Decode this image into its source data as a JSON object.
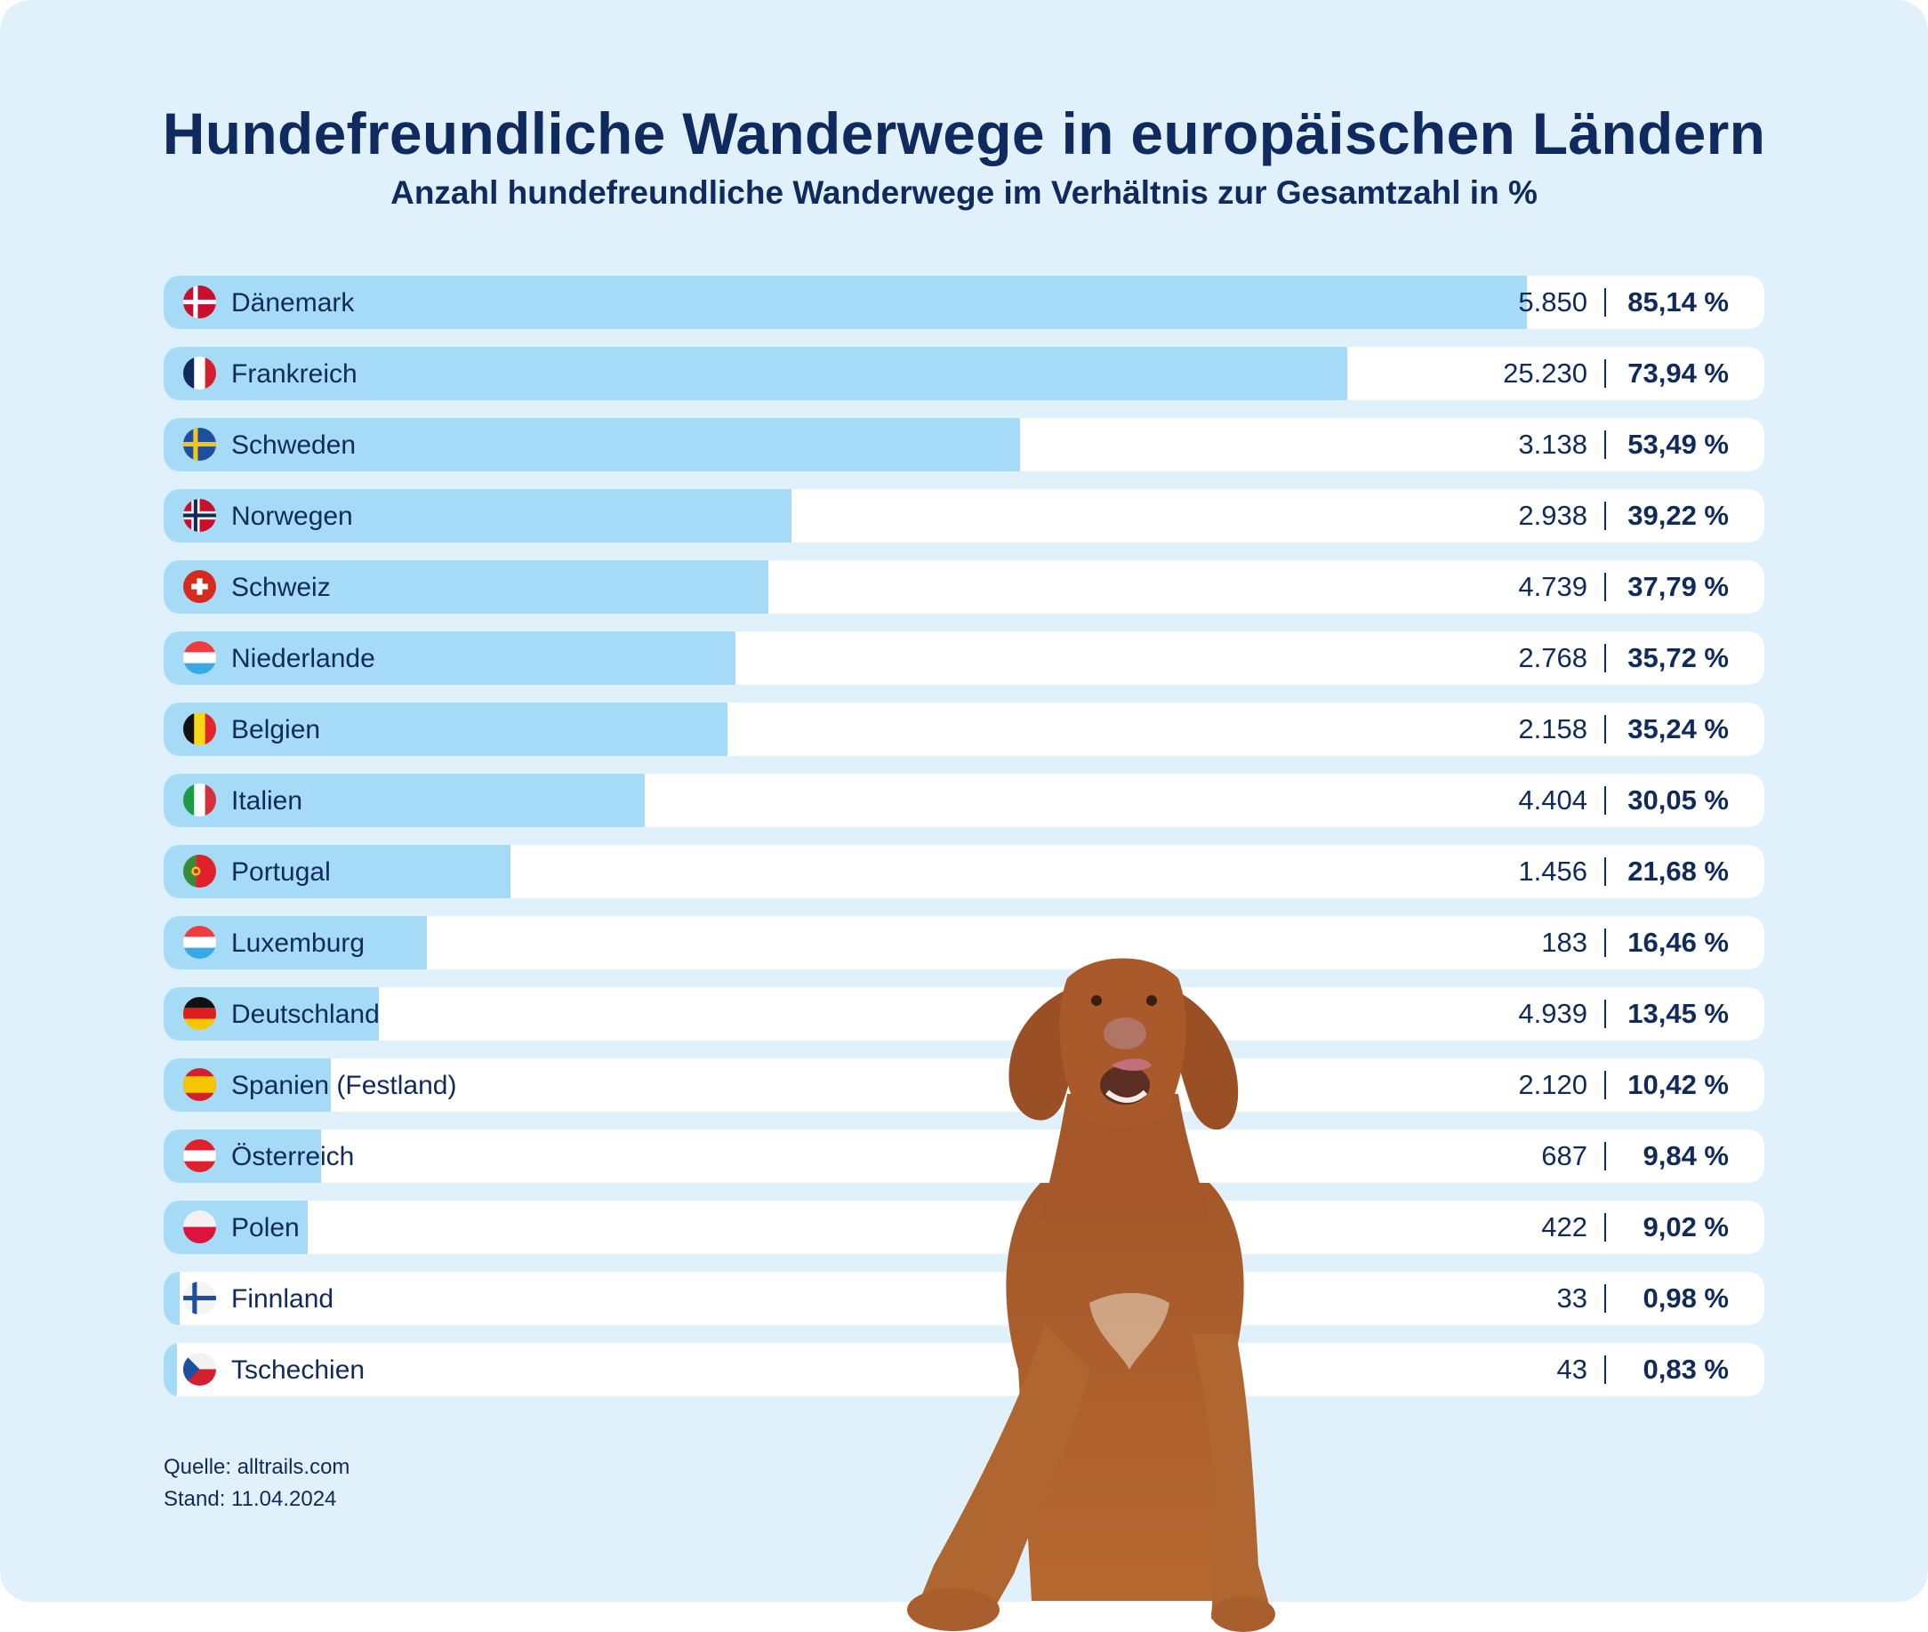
{
  "header": {
    "title": "Hundefreundliche Wanderwege in europäischen Ländern",
    "subtitle": "Anzahl hundefreundliche Wanderwege im Verhältnis zur Gesamtzahl in %"
  },
  "colors": {
    "background": "#e1f1fc",
    "bar_fill": "#a5dbf6",
    "bar_track": "#ffffff",
    "text": "#102a5c"
  },
  "chart_data": {
    "type": "bar",
    "orientation": "horizontal",
    "title": "Hundefreundliche Wanderwege in europäischen Ländern",
    "subtitle": "Anzahl hundefreundliche Wanderwege im Verhältnis zur Gesamtzahl in %",
    "xlim": [
      0,
      100
    ],
    "unit": "%",
    "categories": [
      "Dänemark",
      "Frankreich",
      "Schweden",
      "Norwegen",
      "Schweiz",
      "Niederlande",
      "Belgien",
      "Italien",
      "Portugal",
      "Luxemburg",
      "Deutschland",
      "Spanien (Festland)",
      "Österreich",
      "Polen",
      "Finnland",
      "Tschechien"
    ],
    "rows": [
      {
        "country": "Dänemark",
        "flag": "denmark-flag-icon",
        "count": "5.850",
        "pct_label": "85,14 %",
        "pct": 85.14
      },
      {
        "country": "Frankreich",
        "flag": "france-flag-icon",
        "count": "25.230",
        "pct_label": "73,94 %",
        "pct": 73.94
      },
      {
        "country": "Schweden",
        "flag": "sweden-flag-icon",
        "count": "3.138",
        "pct_label": "53,49 %",
        "pct": 53.49
      },
      {
        "country": "Norwegen",
        "flag": "norway-flag-icon",
        "count": "2.938",
        "pct_label": "39,22 %",
        "pct": 39.22
      },
      {
        "country": "Schweiz",
        "flag": "switzerland-flag-icon",
        "count": "4.739",
        "pct_label": "37,79 %",
        "pct": 37.79
      },
      {
        "country": "Niederlande",
        "flag": "netherlands-flag-icon",
        "count": "2.768",
        "pct_label": "35,72 %",
        "pct": 35.72
      },
      {
        "country": "Belgien",
        "flag": "belgium-flag-icon",
        "count": "2.158",
        "pct_label": "35,24 %",
        "pct": 35.24
      },
      {
        "country": "Italien",
        "flag": "italy-flag-icon",
        "count": "4.404",
        "pct_label": "30,05 %",
        "pct": 30.05
      },
      {
        "country": "Portugal",
        "flag": "portugal-flag-icon",
        "count": "1.456",
        "pct_label": "21,68 %",
        "pct": 21.68
      },
      {
        "country": "Luxemburg",
        "flag": "luxembourg-flag-icon",
        "count": "183",
        "pct_label": "16,46 %",
        "pct": 16.46
      },
      {
        "country": "Deutschland",
        "flag": "germany-flag-icon",
        "count": "4.939",
        "pct_label": "13,45 %",
        "pct": 13.45
      },
      {
        "country": "Spanien (Festland)",
        "flag": "spain-flag-icon",
        "count": "2.120",
        "pct_label": "10,42 %",
        "pct": 10.42
      },
      {
        "country": "Österreich",
        "flag": "austria-flag-icon",
        "count": "687",
        "pct_label": "9,84 %",
        "pct": 9.84
      },
      {
        "country": "Polen",
        "flag": "poland-flag-icon",
        "count": "422",
        "pct_label": "9,02 %",
        "pct": 9.02
      },
      {
        "country": "Finnland",
        "flag": "finland-flag-icon",
        "count": "33",
        "pct_label": "0,98 %",
        "pct": 0.98
      },
      {
        "country": "Tschechien",
        "flag": "czech-flag-icon",
        "count": "43",
        "pct_label": "0,83 %",
        "pct": 0.83
      }
    ]
  },
  "footer": {
    "source": "Quelle: alltrails.com",
    "date": "Stand: 11.04.2024"
  },
  "illustration": {
    "name": "dog-photo",
    "description": "Vizsla dog standing with front paws over the bottom edge"
  }
}
